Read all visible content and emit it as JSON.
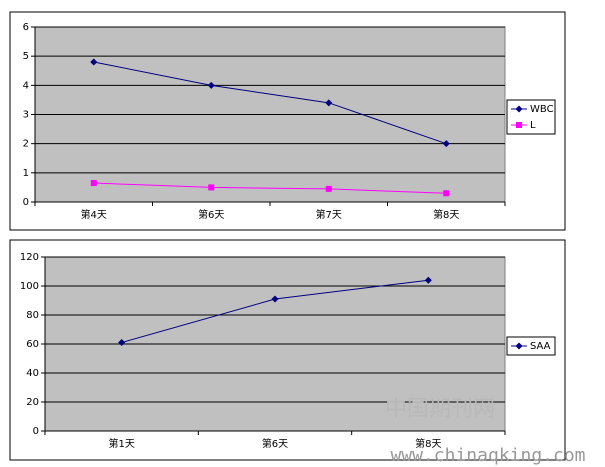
{
  "chart_data": [
    {
      "type": "line",
      "categories": [
        "第4天",
        "第6天",
        "第7天",
        "第8天"
      ],
      "series": [
        {
          "name": "WBC",
          "color": "#000080",
          "marker": "diamond",
          "values": [
            4.8,
            4.0,
            3.4,
            2.0
          ]
        },
        {
          "name": "L",
          "color": "#ff00ff",
          "marker": "square",
          "values": [
            0.65,
            0.5,
            0.45,
            0.3
          ]
        }
      ],
      "ylim": [
        0,
        6
      ],
      "yticks": [
        0,
        1,
        2,
        3,
        4,
        5,
        6
      ],
      "grid": true,
      "legend": "right"
    },
    {
      "type": "line",
      "categories": [
        "第1天",
        "第6天",
        "第8天"
      ],
      "series": [
        {
          "name": "SAA",
          "color": "#000080",
          "marker": "diamond",
          "values": [
            61,
            91,
            104
          ]
        }
      ],
      "ylim": [
        0,
        120
      ],
      "yticks": [
        0,
        20,
        40,
        60,
        80,
        100,
        120
      ],
      "grid": true,
      "legend": "right"
    }
  ],
  "watermark": {
    "title": "中国期刊网",
    "url": "www.chinaqking.com"
  }
}
